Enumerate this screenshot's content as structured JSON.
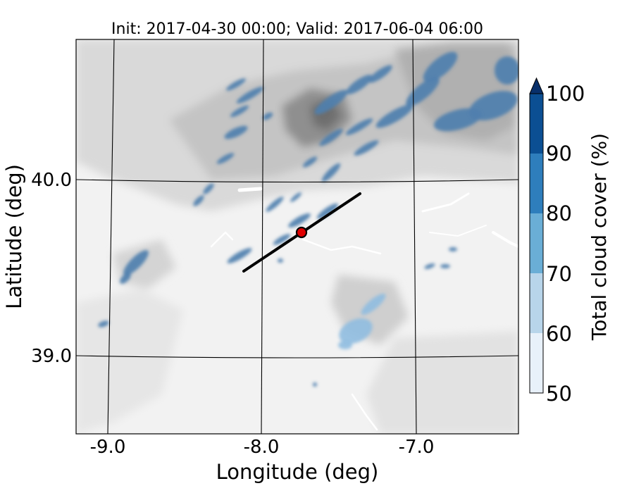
{
  "title": "Init: 2017-04-30 00:00; Valid: 2017-06-04 06:00",
  "map": {
    "xlabel": "Longitude (deg)",
    "ylabel": "Latitude (deg)",
    "xticks": [
      "-9.0",
      "-8.0",
      "-7.0"
    ],
    "yticks": [
      "40.0",
      "39.0"
    ],
    "background": "grayscale terrain elevation contours",
    "overlay": "blue filled cloud-cover contours",
    "cross_section_line": {
      "color": "#000000"
    },
    "marker": {
      "color": "#e00000",
      "outline": "#000000"
    }
  },
  "colorbar": {
    "label": "Total cloud cover (%)",
    "ticks": [
      "50",
      "60",
      "70",
      "80",
      "90",
      "100"
    ],
    "levels": [
      50,
      60,
      70,
      80,
      90,
      100
    ],
    "colors": [
      "#e8f1fa",
      "#b8d5ea",
      "#6aaed6",
      "#2e7ebc",
      "#0b4f93"
    ],
    "extend_color": "#08306b",
    "extend": "max"
  }
}
